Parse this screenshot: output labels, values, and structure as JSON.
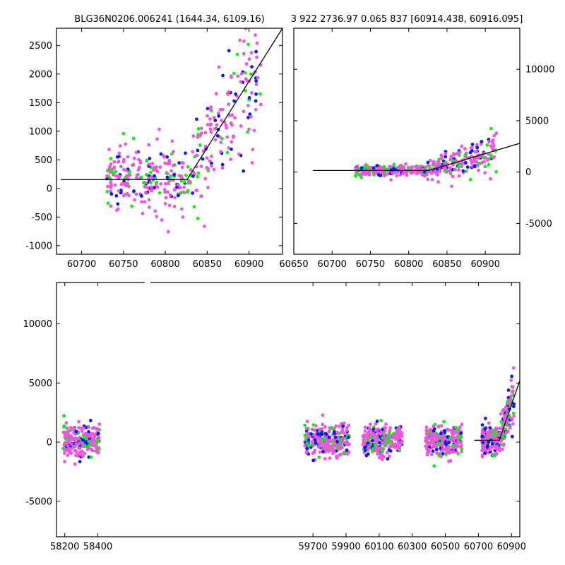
{
  "chart_data": [
    {
      "type": "scatter",
      "panel": "top-left",
      "title": "BLG36N0206.006241 (1644.34, 6109.16)",
      "xlim": [
        60670,
        60940
      ],
      "ylim": [
        -1150,
        2800
      ],
      "xticks": [
        60700,
        60750,
        60800,
        60850,
        60900
      ],
      "yticks": [
        -1000,
        -500,
        0,
        500,
        1000,
        1500,
        2000,
        2500
      ],
      "ytick_side": "left",
      "series": [
        {
          "name": "magenta",
          "color": "#ee55dd"
        },
        {
          "name": "blue",
          "color": "#0a1aee"
        },
        {
          "name": "green",
          "color": "#11ee11"
        }
      ],
      "model_line": {
        "x": [
          60675,
          60826,
          60940
        ],
        "y": [
          155,
          155,
          2800
        ]
      }
    },
    {
      "type": "scatter",
      "panel": "top-right",
      "title": "3 922 2736.97 0.065 837 [60914.438, 60916.095]",
      "xlim": [
        60650,
        60945
      ],
      "ylim": [
        -8000,
        14000
      ],
      "xticks": [
        60650,
        60700,
        60750,
        60800,
        60850,
        60900
      ],
      "yticks": [
        -5000,
        0,
        5000,
        10000
      ],
      "ytick_side": "right",
      "series": [
        {
          "name": "magenta",
          "color": "#ee55dd"
        },
        {
          "name": "blue",
          "color": "#0a1aee"
        },
        {
          "name": "green",
          "color": "#11ee11"
        }
      ],
      "model_line": {
        "x": [
          60675,
          60826,
          60945
        ],
        "y": [
          155,
          155,
          2800
        ]
      }
    },
    {
      "type": "scatter",
      "panel": "bottom",
      "xlim": [
        58150,
        60950
      ],
      "ylim": [
        -8000,
        13500
      ],
      "xticks": [
        58200,
        58400,
        59700,
        59900,
        60100,
        60300,
        60500,
        60700,
        60900
      ],
      "yticks": [
        -5000,
        0,
        5000,
        10000
      ],
      "ytick_side": "left",
      "seasons": [
        [
          58190,
          58410
        ],
        [
          59650,
          59920
        ],
        [
          60000,
          60240
        ],
        [
          60380,
          60600
        ],
        [
          60720,
          60915
        ]
      ],
      "series": [
        {
          "name": "magenta",
          "color": "#ee55dd"
        },
        {
          "name": "blue",
          "color": "#0a1aee"
        },
        {
          "name": "green",
          "color": "#11ee11"
        }
      ],
      "model_line": {
        "x": [
          60675,
          60826,
          60950
        ],
        "y": [
          155,
          155,
          5200
        ]
      }
    }
  ]
}
